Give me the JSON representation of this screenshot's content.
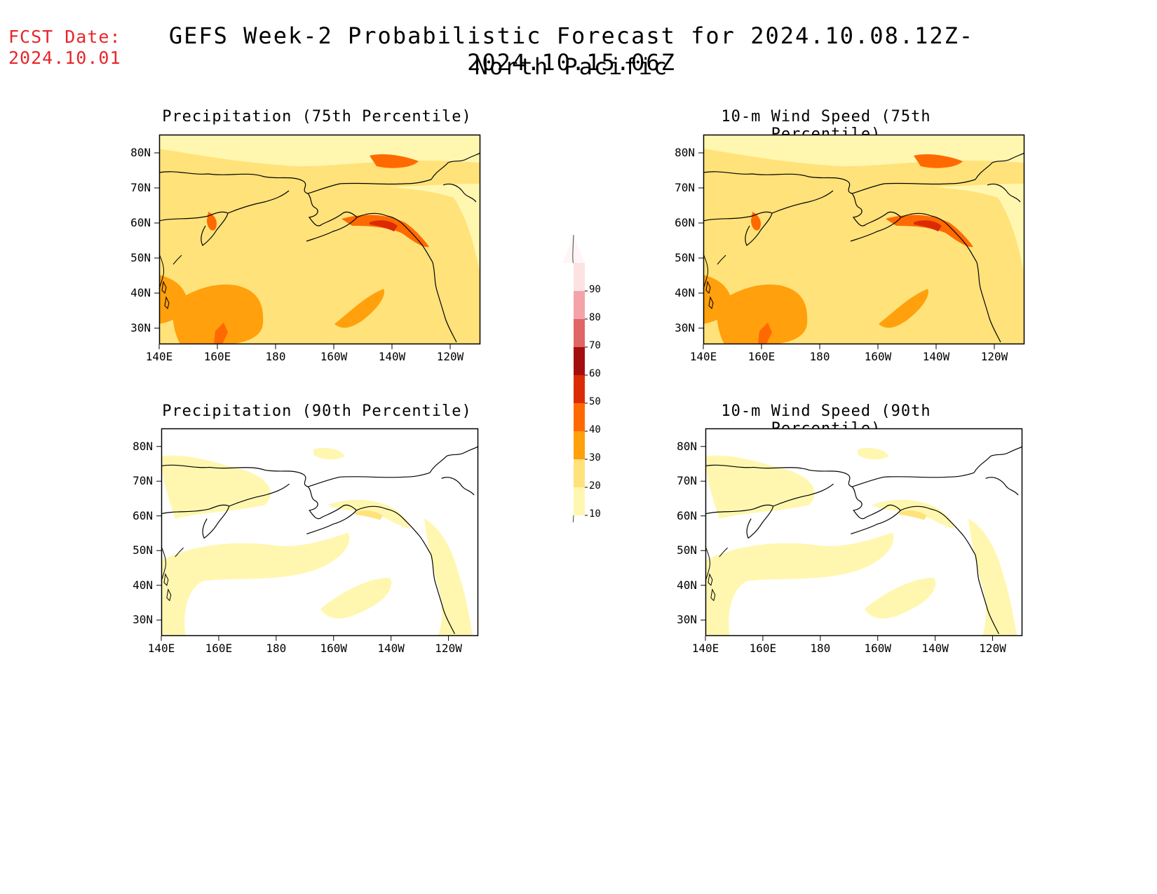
{
  "header": {
    "fcst_label": "FCST Date:",
    "fcst_date": "2024.10.01",
    "title": "GEFS Week-2 Probabilistic Forecast for 2024.10.08.12Z-2024.10.15.06Z",
    "subtitle": "North Pacific"
  },
  "axes": {
    "lon_labels": [
      "140E",
      "160E",
      "180",
      "160W",
      "140W",
      "120W"
    ],
    "lat_labels": [
      "80N",
      "70N",
      "60N",
      "50N",
      "40N",
      "30N"
    ]
  },
  "panels": [
    {
      "id": "precip75",
      "title": "Precipitation (75th Percentile)",
      "level": "high"
    },
    {
      "id": "wind75",
      "title": "10-m Wind Speed (75th Percentile)",
      "level": "high"
    },
    {
      "id": "precip90",
      "title": "Precipitation (90th Percentile)",
      "level": "low"
    },
    {
      "id": "wind90",
      "title": "10-m Wind Speed (90th Percentile)",
      "level": "low"
    }
  ],
  "colorbar": {
    "labels": [
      "90",
      "80",
      "70",
      "60",
      "50",
      "40",
      "30",
      "20",
      "10"
    ],
    "colors": [
      "#fde2e4",
      "#f4a3a8",
      "#e06666",
      "#a30f0f",
      "#dc2a06",
      "#ff6a00",
      "#ffa00c",
      "#ffe27a",
      "#fff7b0"
    ]
  }
}
